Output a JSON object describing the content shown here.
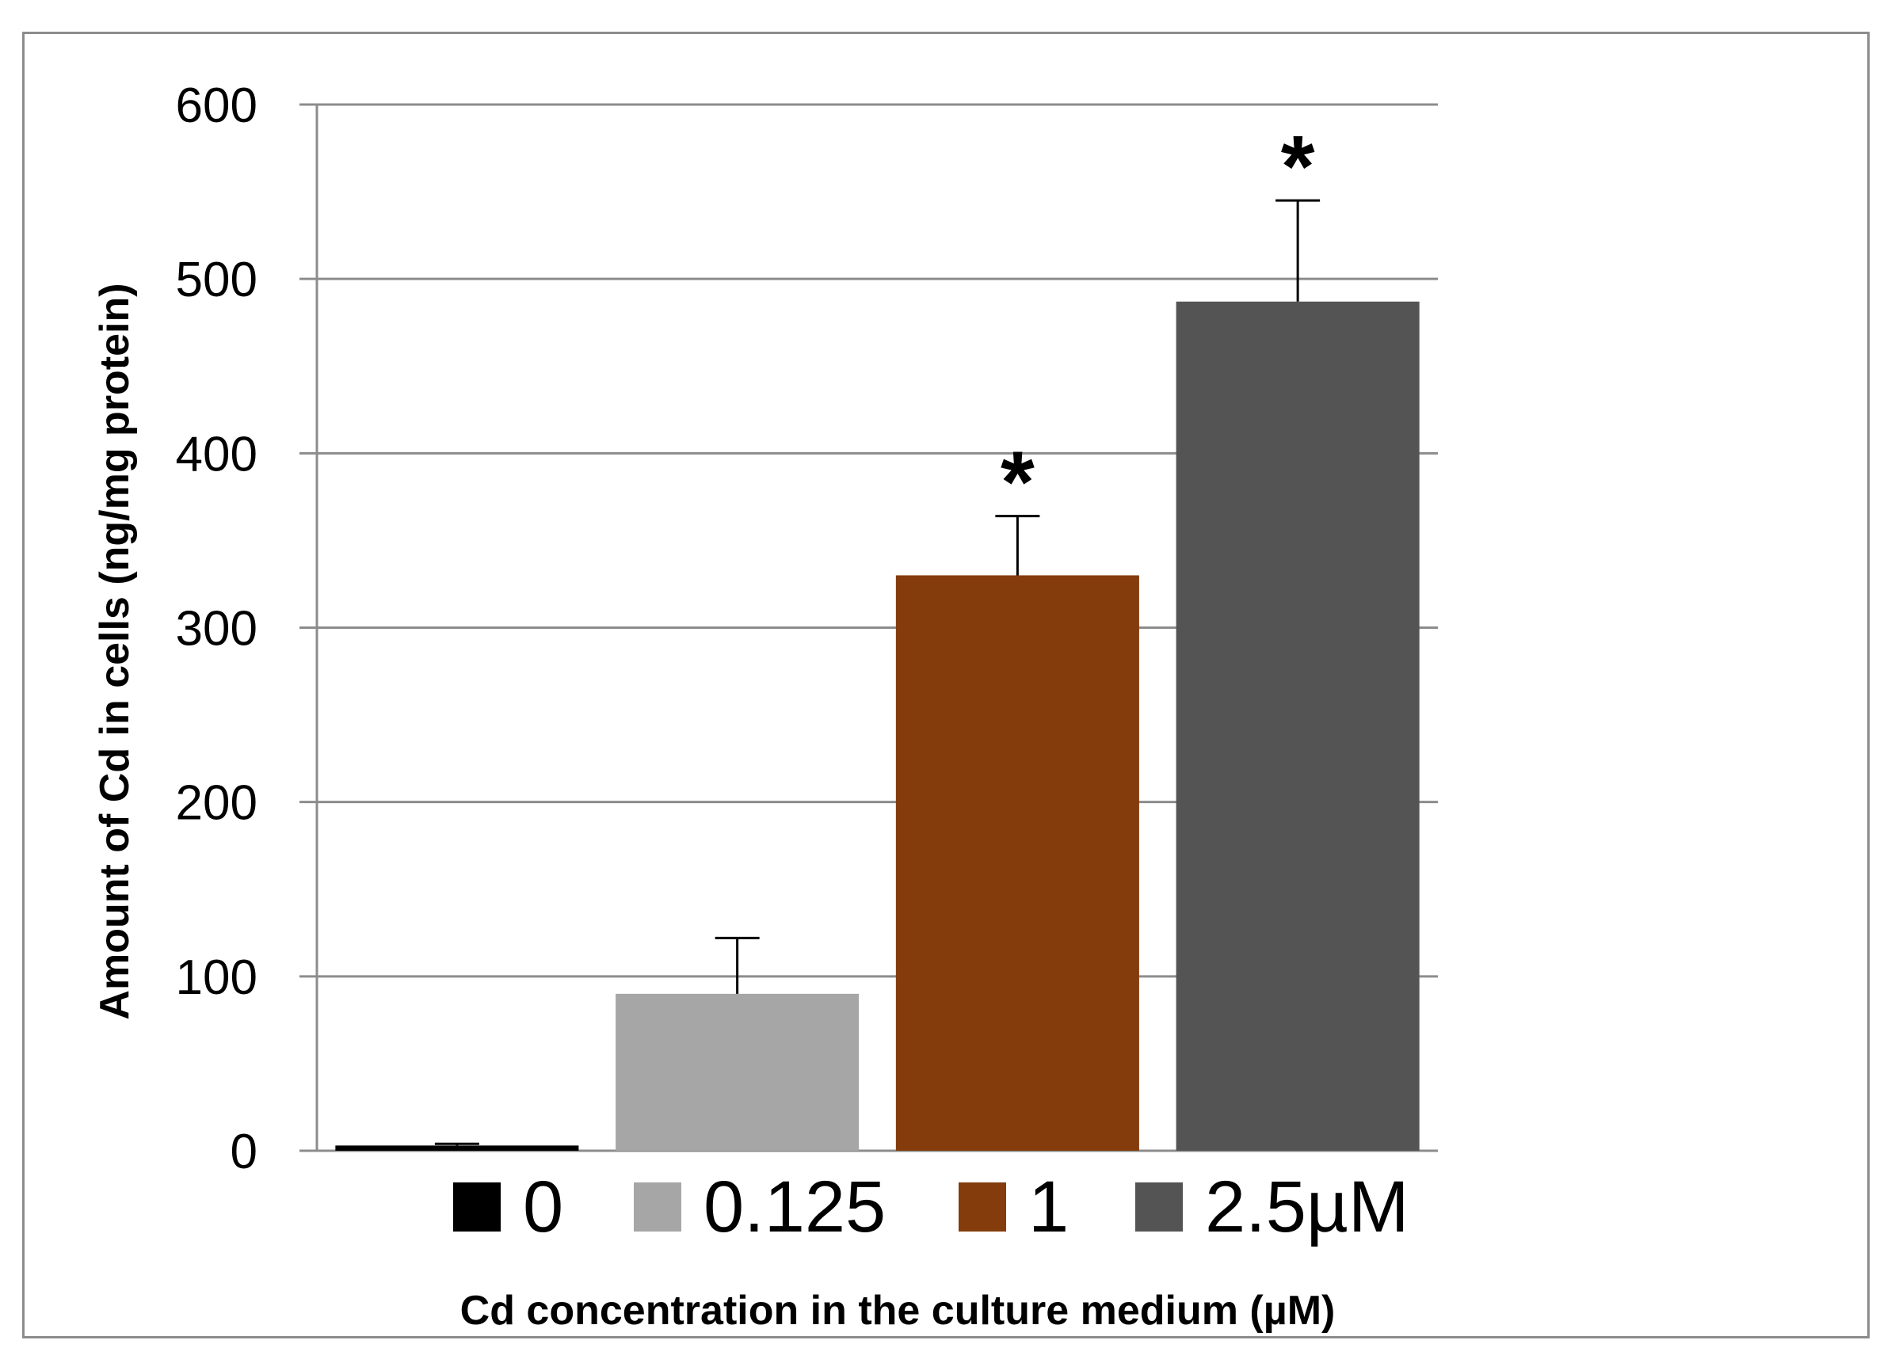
{
  "chart_data": {
    "type": "bar",
    "categories": [
      "0",
      "0.125",
      "1",
      "2.5µM"
    ],
    "values": [
      3,
      90,
      330,
      487
    ],
    "errors": [
      1,
      32,
      34,
      58
    ],
    "significance": [
      "",
      "",
      "*",
      "*"
    ],
    "colors": [
      "#000000",
      "#a6a6a6",
      "#843c0c",
      "#545454"
    ],
    "ylabel": "Amount of Cd in cells (ng/mg protein)",
    "xlabel": "Cd concentration in the culture medium (µM)",
    "ylim": [
      0,
      600
    ],
    "yticks": [
      0,
      100,
      200,
      300,
      400,
      500,
      600
    ],
    "grid": true,
    "legend": "bottom",
    "gridline_color": "#8c8c8c"
  }
}
